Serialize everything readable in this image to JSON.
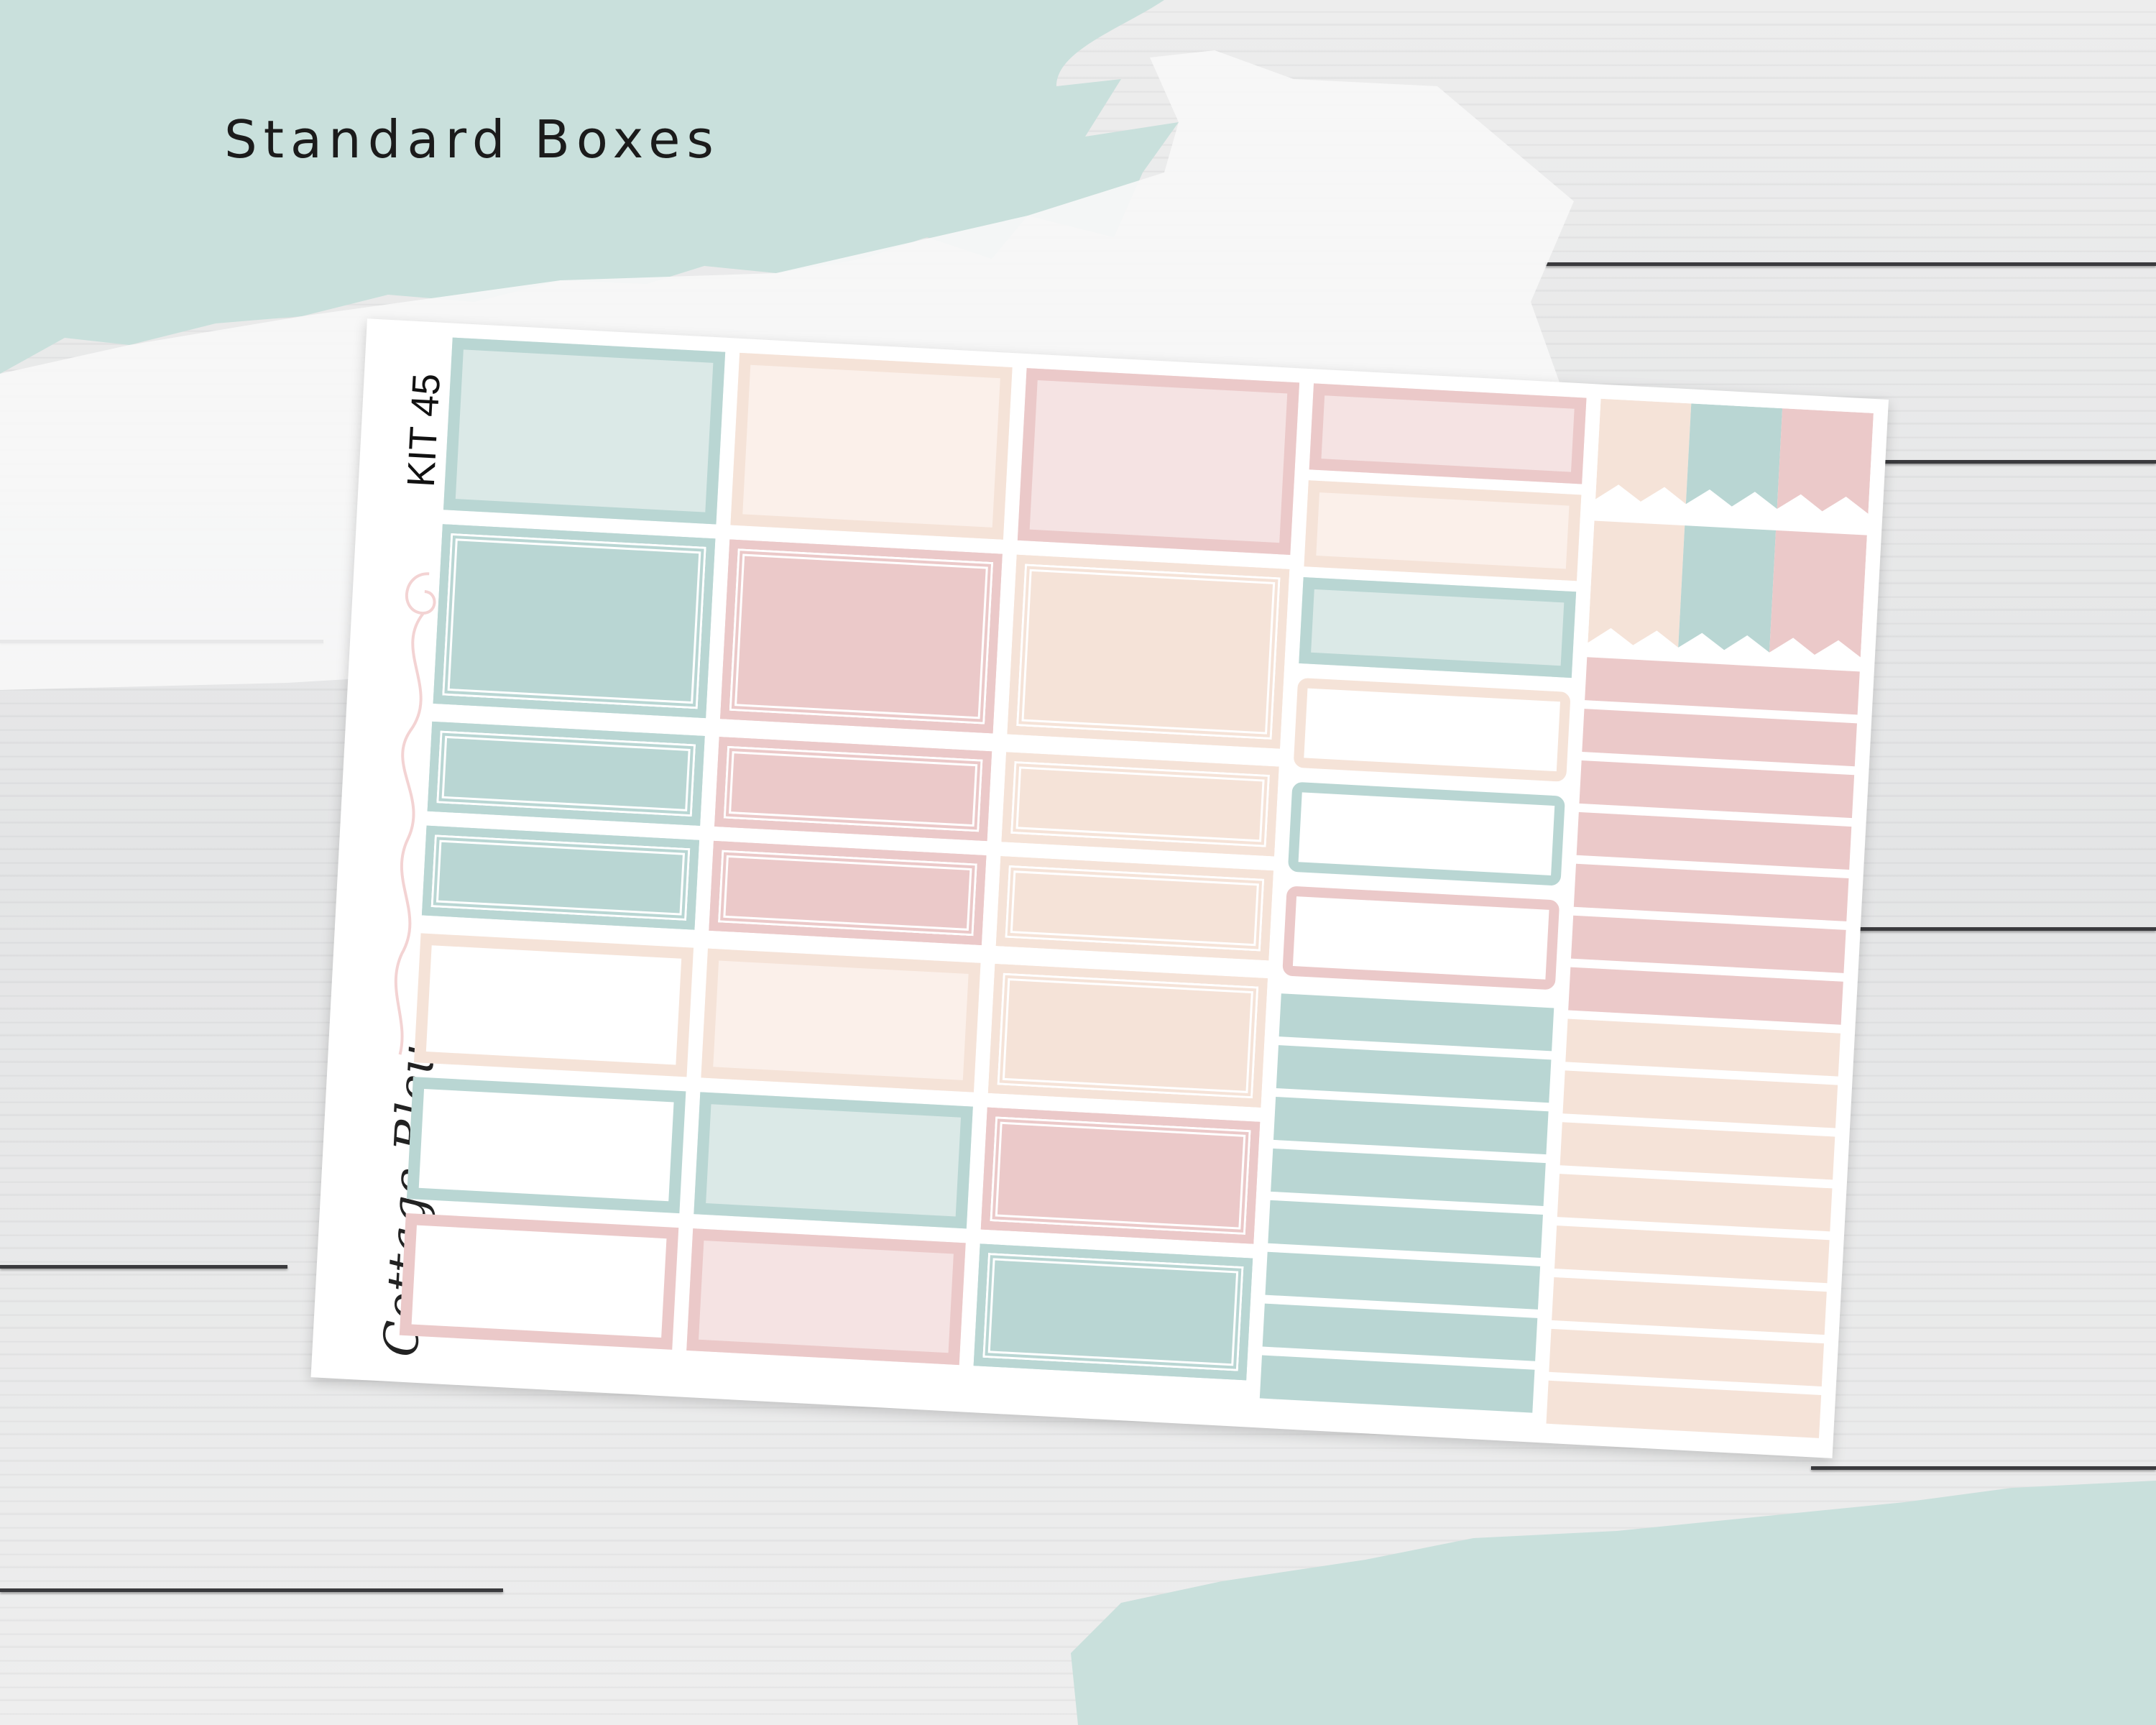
{
  "heading": "Standard Boxes",
  "sheet": {
    "kit_label": "KIT 45",
    "brand_label": "Cottage Bleu"
  },
  "colors": {
    "teal": "#b9d6d3",
    "pink": "#ebc9c9",
    "peach": "#f5e3d8",
    "swash": "#c9e0dc",
    "wood": "#e7e8e9"
  },
  "icons": {
    "swirl": "decorative-swirl-icon"
  }
}
